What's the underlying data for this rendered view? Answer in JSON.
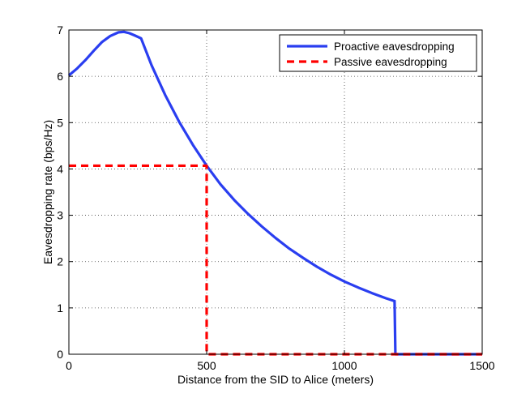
{
  "chart_data": {
    "type": "line",
    "title": "",
    "xlabel": "Distance from the SID to Alice (meters)",
    "ylabel": "Eavesdropping rate (bps/Hz)",
    "xlim": [
      0,
      1500
    ],
    "ylim": [
      0,
      7
    ],
    "xticks": [
      0,
      500,
      1000,
      1500
    ],
    "yticks": [
      0,
      1,
      2,
      3,
      4,
      5,
      6,
      7
    ],
    "grid": true,
    "legend_position": "top-right",
    "series": [
      {
        "name": "Proactive eavesdropping",
        "color": "#2a3ef0",
        "style": "solid",
        "x": [
          0,
          30,
          60,
          90,
          120,
          150,
          180,
          200,
          220,
          240,
          262,
          300,
          350,
          400,
          450,
          500,
          550,
          600,
          650,
          700,
          750,
          800,
          850,
          900,
          950,
          1000,
          1050,
          1100,
          1150,
          1180,
          1182,
          1185,
          1200,
          1300,
          1400,
          1500
        ],
        "y": [
          6.02,
          6.17,
          6.35,
          6.55,
          6.74,
          6.87,
          6.95,
          6.96,
          6.93,
          6.88,
          6.82,
          6.24,
          5.59,
          5.02,
          4.52,
          4.07,
          3.67,
          3.33,
          3.03,
          2.76,
          2.51,
          2.28,
          2.08,
          1.89,
          1.72,
          1.57,
          1.44,
          1.32,
          1.21,
          1.15,
          1.15,
          0,
          0,
          0,
          0,
          0
        ]
      },
      {
        "name": "Passive eavesdropping",
        "color": "#ff0000",
        "style": "dashed",
        "x": [
          0,
          500,
          500,
          1500
        ],
        "y": [
          4.07,
          4.07,
          0,
          0
        ]
      }
    ]
  }
}
